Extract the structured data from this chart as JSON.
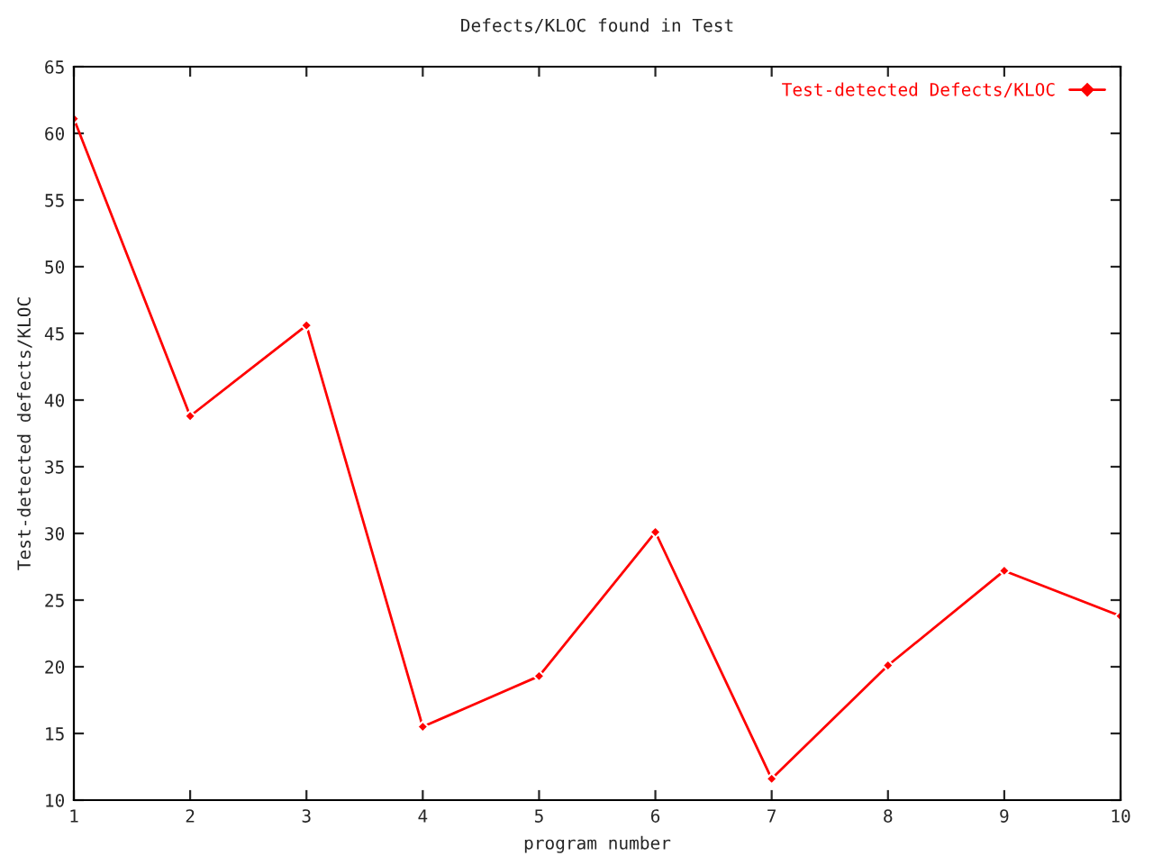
{
  "chart_data": {
    "type": "line",
    "title": "Defects/KLOC found in Test",
    "xlabel": "program number",
    "ylabel": "Test-detected defects/KLOC",
    "x": [
      1,
      2,
      3,
      4,
      5,
      6,
      7,
      8,
      9,
      10
    ],
    "series": [
      {
        "name": "Test-detected Defects/KLOC",
        "color": "#ff0000",
        "values": [
          61.1,
          38.8,
          45.6,
          15.5,
          19.3,
          30.1,
          11.6,
          20.1,
          27.2,
          23.8
        ]
      }
    ],
    "xlim": [
      1,
      10
    ],
    "xticks": [
      1,
      2,
      3,
      4,
      5,
      6,
      7,
      8,
      9,
      10
    ],
    "ylim": [
      10,
      65
    ],
    "yticks": [
      10,
      15,
      20,
      25,
      30,
      35,
      40,
      45,
      50,
      55,
      60,
      65
    ],
    "grid": false,
    "legend": "top right",
    "marker": "diamond",
    "line_style": "solid"
  }
}
